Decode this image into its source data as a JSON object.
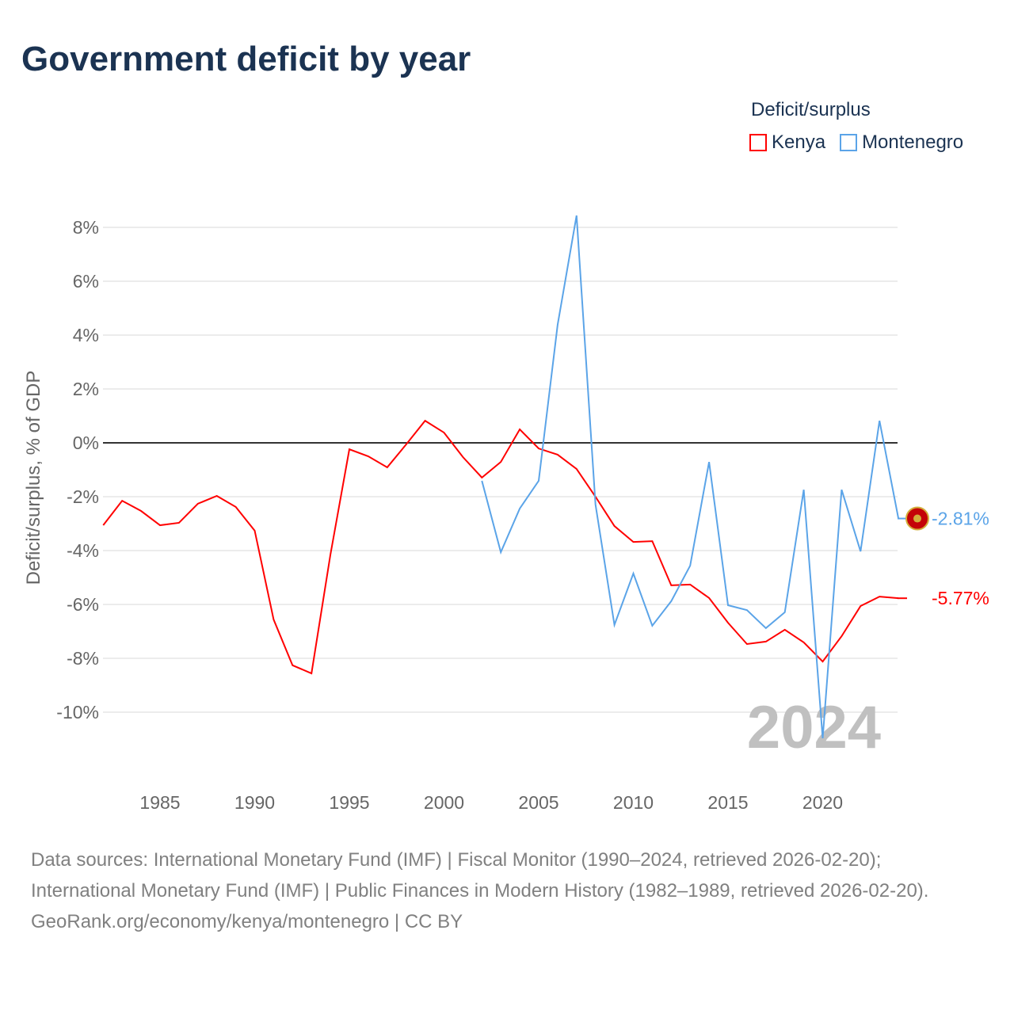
{
  "title": "Government deficit by year",
  "legend": {
    "title": "Deficit/surplus",
    "items": [
      {
        "label": "Kenya",
        "color": "#ff0000"
      },
      {
        "label": "Montenegro",
        "color": "#5ba4e8"
      }
    ]
  },
  "footer": {
    "sources": "Data sources: International Monetary Fund (IMF) | Fiscal Monitor (1990–2024, retrieved 2026-02-20); International Monetary Fund (IMF) | Public Finances in Modern History (1982–1989, retrieved 2026-02-20).",
    "credit": "GeoRank.org/economy/kenya/montenegro | CC BY"
  },
  "chart_data": {
    "type": "line",
    "title": "Government deficit by year",
    "ylabel": "Deficit/surplus, % of GDP",
    "xlabel": "",
    "year_watermark": "2024",
    "xlim": [
      1982,
      2024
    ],
    "ylim": [
      -12,
      8.5
    ],
    "x_ticks": [
      1985,
      1990,
      1995,
      2000,
      2005,
      2010,
      2015,
      2020
    ],
    "y_ticks": [
      8,
      6,
      4,
      2,
      0,
      -2,
      -4,
      -6,
      -8,
      -10
    ],
    "y_tick_labels": [
      "8%",
      "6%",
      "4%",
      "2%",
      "0%",
      "-2%",
      "-4%",
      "-6%",
      "-8%",
      "-10%"
    ],
    "grid": true,
    "series": [
      {
        "name": "Kenya",
        "color": "#ff0000",
        "end_label": "-5.77%",
        "start_year": 1982,
        "values": [
          -3.06,
          -2.15,
          -2.53,
          -3.06,
          -2.97,
          -2.26,
          -1.97,
          -2.38,
          -3.26,
          -6.56,
          -8.26,
          -8.56,
          -4.15,
          -0.24,
          -0.5,
          -0.91,
          -0.06,
          0.82,
          0.38,
          -0.53,
          -1.29,
          -0.71,
          0.5,
          -0.21,
          -0.44,
          -0.97,
          -2.0,
          -3.09,
          -3.68,
          -3.65,
          -5.29,
          -5.26,
          -5.76,
          -6.68,
          -7.47,
          -7.38,
          -6.94,
          -7.41,
          -8.12,
          -7.18,
          -6.06,
          -5.71,
          -5.77
        ]
      },
      {
        "name": "Montenegro",
        "color": "#5ba4e8",
        "end_label": "-2.81%",
        "start_year": 2002,
        "values": [
          -1.41,
          -4.06,
          -2.44,
          -1.41,
          4.38,
          8.44,
          -2.29,
          -6.76,
          -4.85,
          -6.79,
          -5.88,
          -4.56,
          -0.71,
          -6.03,
          -6.21,
          -6.88,
          -6.29,
          -1.74,
          -10.97,
          -1.74,
          -4.03,
          0.82,
          -2.81
        ]
      }
    ]
  }
}
